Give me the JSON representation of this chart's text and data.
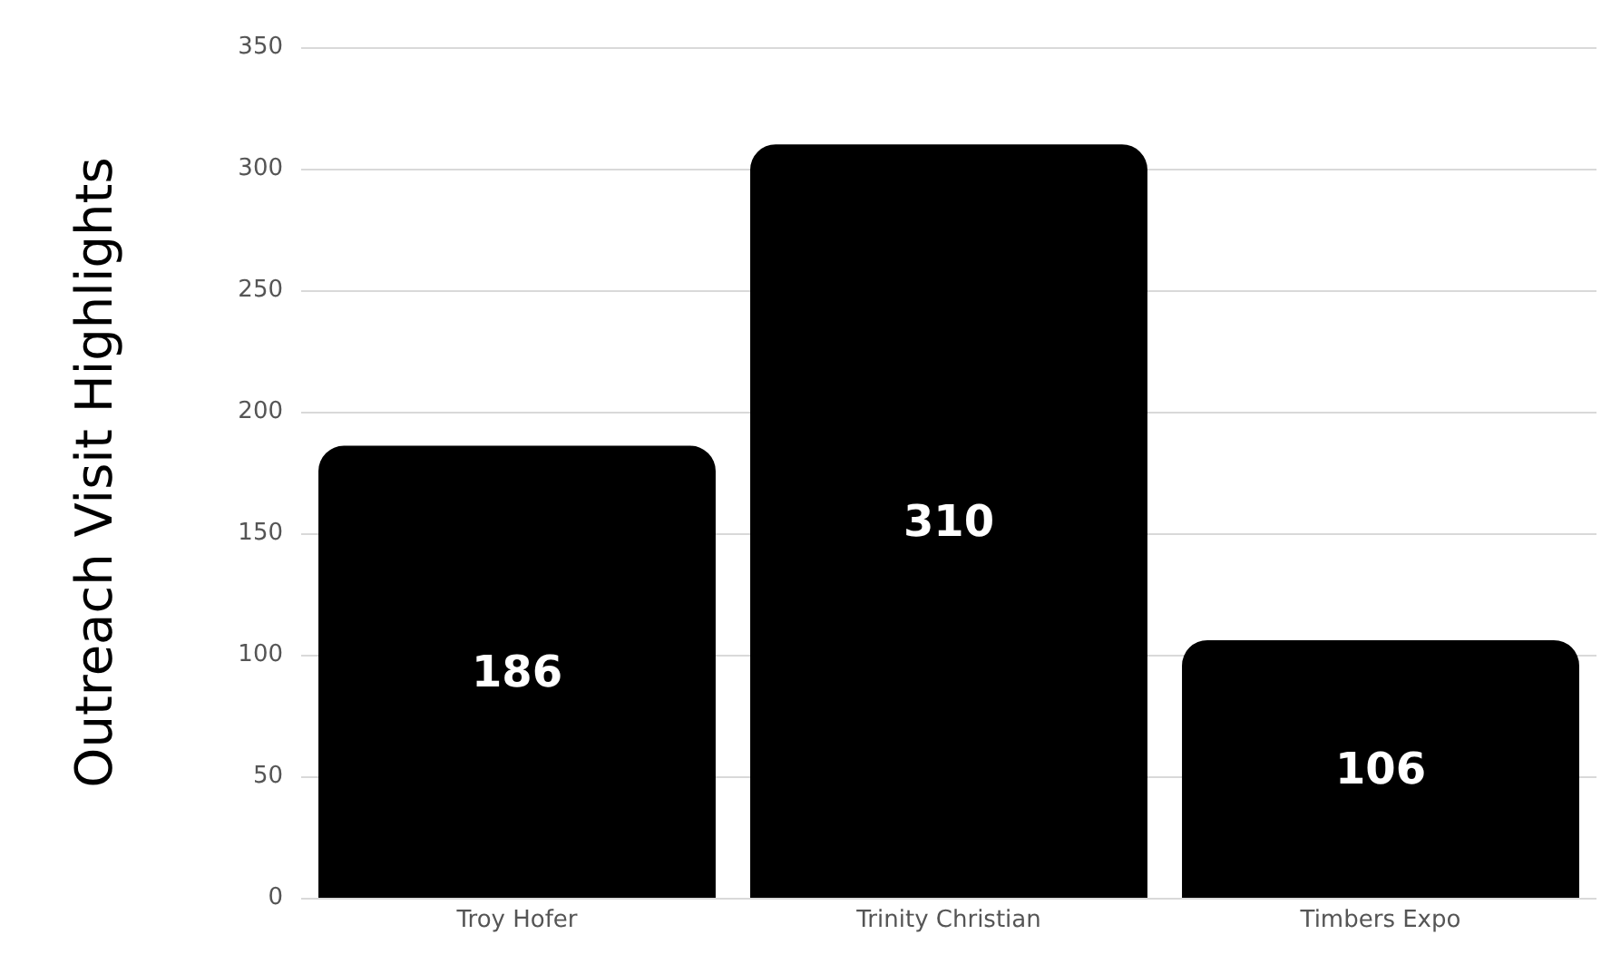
{
  "chart_data": {
    "type": "bar",
    "ylabel": "Outreach Visit Highlights",
    "categories": [
      "Troy Hofer",
      "Trinity Christian",
      "Timbers Expo"
    ],
    "values": [
      186,
      310,
      106
    ],
    "color": "#000000",
    "ylim": [
      0,
      350
    ],
    "yticks": [
      0,
      50,
      100,
      150,
      200,
      250,
      300,
      350
    ],
    "grid": "y",
    "data_labels": true
  }
}
